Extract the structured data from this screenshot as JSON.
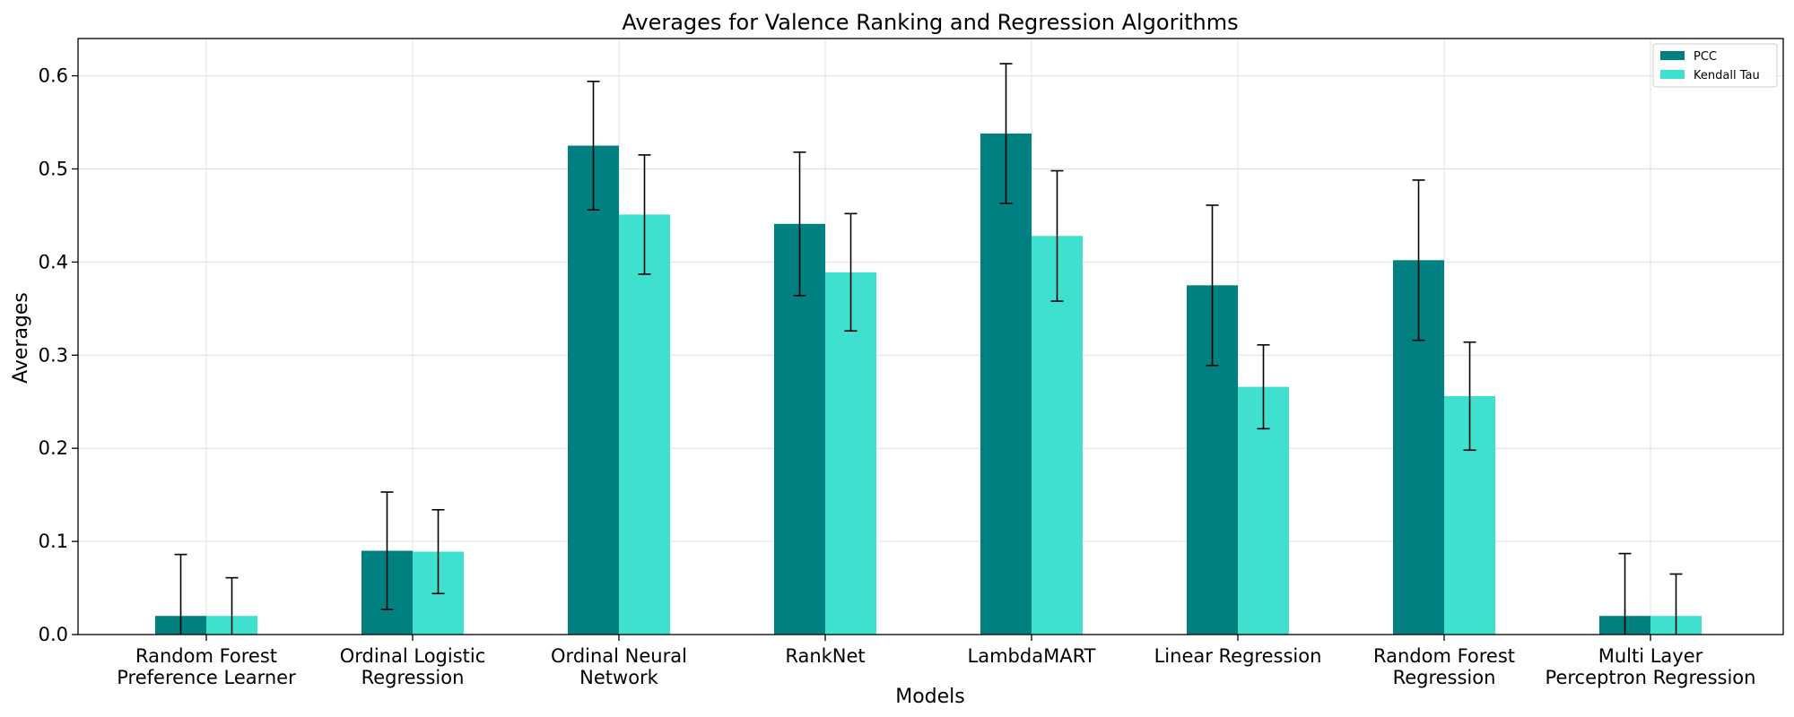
{
  "chart_data": {
    "type": "bar",
    "title": "Averages for Valence Ranking and Regression Algorithms",
    "xlabel": "Models",
    "ylabel": "Averages",
    "ylim": [
      0,
      0.64
    ],
    "yticks": [
      0.0,
      0.1,
      0.2,
      0.3,
      0.4,
      0.5,
      0.6
    ],
    "ytick_labels": [
      "0.0",
      "0.1",
      "0.2",
      "0.3",
      "0.4",
      "0.5",
      "0.6"
    ],
    "grid": true,
    "legend_position": "top-right",
    "categories": [
      [
        "Random Forest",
        "Preference Learner"
      ],
      [
        "Ordinal Logistic",
        "Regression"
      ],
      [
        "Ordinal Neural",
        "Network"
      ],
      [
        "RankNet"
      ],
      [
        "LambdaMART"
      ],
      [
        "Linear Regression"
      ],
      [
        "Random Forest",
        "Regression"
      ],
      [
        "Multi Layer",
        "Perceptron Regression"
      ]
    ],
    "series": [
      {
        "name": "PCC",
        "color": "#008080",
        "values": [
          0.02,
          0.09,
          0.525,
          0.441,
          0.538,
          0.375,
          0.402,
          0.02
        ],
        "errors": [
          0.066,
          0.063,
          0.069,
          0.077,
          0.075,
          0.086,
          0.086,
          0.067
        ]
      },
      {
        "name": "Kendall Tau",
        "color": "#40E0D0",
        "values": [
          0.02,
          0.089,
          0.451,
          0.389,
          0.428,
          0.266,
          0.256,
          0.02
        ],
        "errors": [
          0.041,
          0.045,
          0.064,
          0.063,
          0.07,
          0.045,
          0.058,
          0.045
        ]
      }
    ]
  }
}
